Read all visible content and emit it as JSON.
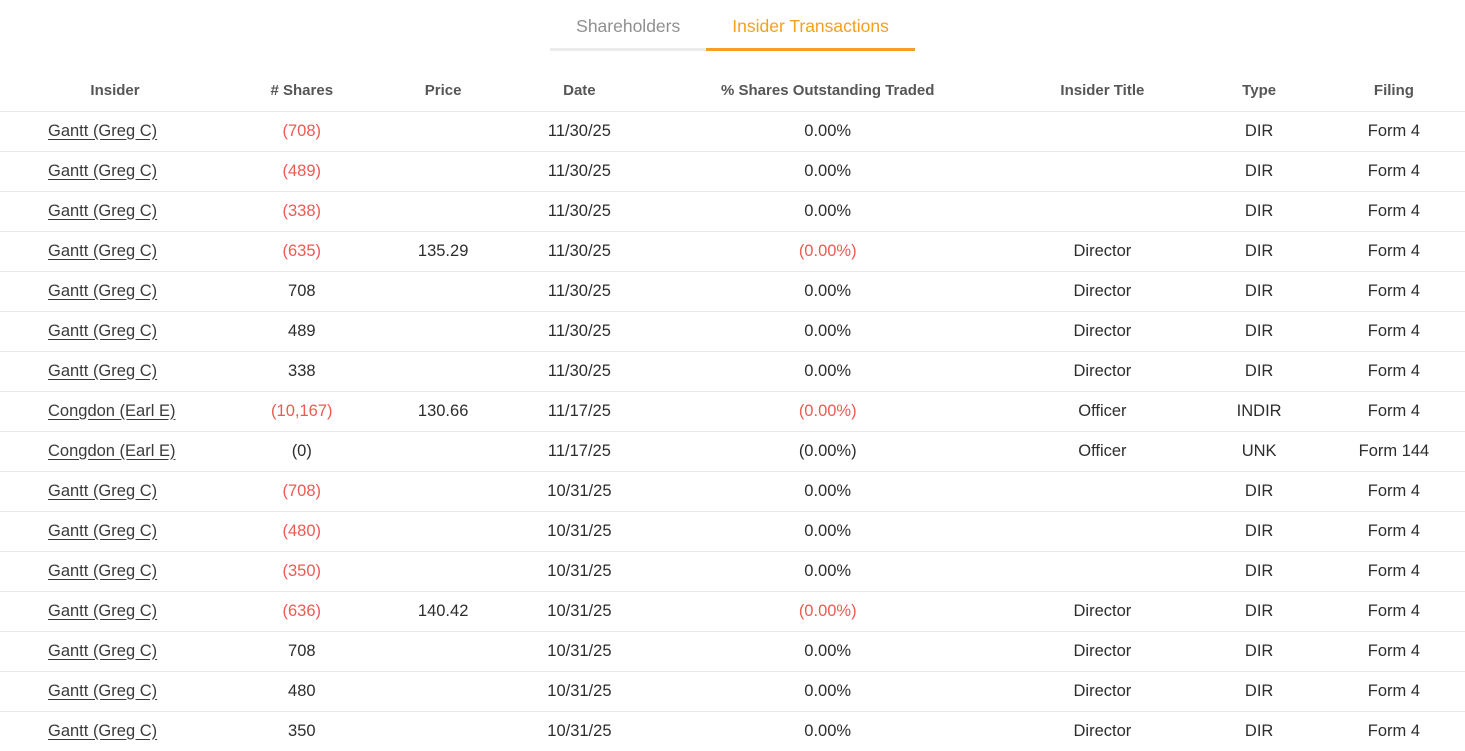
{
  "tabs": [
    {
      "label": "Shareholders",
      "active": false
    },
    {
      "label": "Insider Transactions",
      "active": true
    }
  ],
  "colors": {
    "accent_orange": "#f5a01e",
    "negative_red": "#ee5a52",
    "inactive_tab_gray": "#8f8f8f",
    "row_border": "#e9e9e9"
  },
  "table": {
    "columns": [
      "Insider",
      "# Shares",
      "Price",
      "Date",
      "% Shares Outstanding Traded",
      "Insider Title",
      "Type",
      "Filing"
    ],
    "rows": [
      {
        "insider": "Gantt (Greg C)",
        "shares": "(708)",
        "shares_neg": true,
        "price": "",
        "date": "11/30/25",
        "pct": "0.00%",
        "pct_neg": false,
        "title": "",
        "type": "DIR",
        "filing": "Form 4"
      },
      {
        "insider": "Gantt (Greg C)",
        "shares": "(489)",
        "shares_neg": true,
        "price": "",
        "date": "11/30/25",
        "pct": "0.00%",
        "pct_neg": false,
        "title": "",
        "type": "DIR",
        "filing": "Form 4"
      },
      {
        "insider": "Gantt (Greg C)",
        "shares": "(338)",
        "shares_neg": true,
        "price": "",
        "date": "11/30/25",
        "pct": "0.00%",
        "pct_neg": false,
        "title": "",
        "type": "DIR",
        "filing": "Form 4"
      },
      {
        "insider": "Gantt (Greg C)",
        "shares": "(635)",
        "shares_neg": true,
        "price": "135.29",
        "date": "11/30/25",
        "pct": "(0.00%)",
        "pct_neg": true,
        "title": "Director",
        "type": "DIR",
        "filing": "Form 4"
      },
      {
        "insider": "Gantt (Greg C)",
        "shares": "708",
        "shares_neg": false,
        "price": "",
        "date": "11/30/25",
        "pct": "0.00%",
        "pct_neg": false,
        "title": "Director",
        "type": "DIR",
        "filing": "Form 4"
      },
      {
        "insider": "Gantt (Greg C)",
        "shares": "489",
        "shares_neg": false,
        "price": "",
        "date": "11/30/25",
        "pct": "0.00%",
        "pct_neg": false,
        "title": "Director",
        "type": "DIR",
        "filing": "Form 4"
      },
      {
        "insider": "Gantt (Greg C)",
        "shares": "338",
        "shares_neg": false,
        "price": "",
        "date": "11/30/25",
        "pct": "0.00%",
        "pct_neg": false,
        "title": "Director",
        "type": "DIR",
        "filing": "Form 4"
      },
      {
        "insider": "Congdon (Earl E)",
        "shares": "(10,167)",
        "shares_neg": true,
        "price": "130.66",
        "date": "11/17/25",
        "pct": "(0.00%)",
        "pct_neg": true,
        "title": "Officer",
        "type": "INDIR",
        "filing": "Form 4"
      },
      {
        "insider": "Congdon (Earl E)",
        "shares": "(0)",
        "shares_neg": false,
        "price": "",
        "date": "11/17/25",
        "pct": "(0.00%)",
        "pct_neg": false,
        "title": "Officer",
        "type": "UNK",
        "filing": "Form 144"
      },
      {
        "insider": "Gantt (Greg C)",
        "shares": "(708)",
        "shares_neg": true,
        "price": "",
        "date": "10/31/25",
        "pct": "0.00%",
        "pct_neg": false,
        "title": "",
        "type": "DIR",
        "filing": "Form 4"
      },
      {
        "insider": "Gantt (Greg C)",
        "shares": "(480)",
        "shares_neg": true,
        "price": "",
        "date": "10/31/25",
        "pct": "0.00%",
        "pct_neg": false,
        "title": "",
        "type": "DIR",
        "filing": "Form 4"
      },
      {
        "insider": "Gantt (Greg C)",
        "shares": "(350)",
        "shares_neg": true,
        "price": "",
        "date": "10/31/25",
        "pct": "0.00%",
        "pct_neg": false,
        "title": "",
        "type": "DIR",
        "filing": "Form 4"
      },
      {
        "insider": "Gantt (Greg C)",
        "shares": "(636)",
        "shares_neg": true,
        "price": "140.42",
        "date": "10/31/25",
        "pct": "(0.00%)",
        "pct_neg": true,
        "title": "Director",
        "type": "DIR",
        "filing": "Form 4"
      },
      {
        "insider": "Gantt (Greg C)",
        "shares": "708",
        "shares_neg": false,
        "price": "",
        "date": "10/31/25",
        "pct": "0.00%",
        "pct_neg": false,
        "title": "Director",
        "type": "DIR",
        "filing": "Form 4"
      },
      {
        "insider": "Gantt (Greg C)",
        "shares": "480",
        "shares_neg": false,
        "price": "",
        "date": "10/31/25",
        "pct": "0.00%",
        "pct_neg": false,
        "title": "Director",
        "type": "DIR",
        "filing": "Form 4"
      },
      {
        "insider": "Gantt (Greg C)",
        "shares": "350",
        "shares_neg": false,
        "price": "",
        "date": "10/31/25",
        "pct": "0.00%",
        "pct_neg": false,
        "title": "Director",
        "type": "DIR",
        "filing": "Form 4"
      }
    ]
  }
}
